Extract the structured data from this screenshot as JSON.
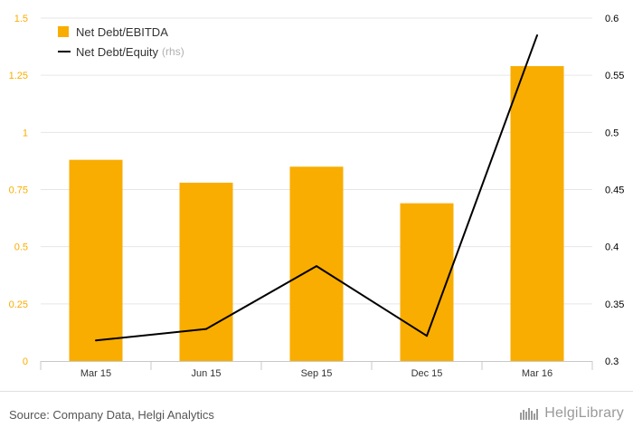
{
  "chart_data": {
    "type": "bar",
    "categories": [
      "Mar 15",
      "Jun 15",
      "Sep 15",
      "Dec 15",
      "Mar 16"
    ],
    "series": [
      {
        "name": "Net Debt/EBITDA",
        "type": "bar",
        "axis": "left",
        "color": "#f9ad00",
        "values": [
          0.88,
          0.78,
          0.85,
          0.69,
          1.29
        ]
      },
      {
        "name": "Net Debt/Equity",
        "type": "line",
        "axis": "right",
        "color": "#000000",
        "values": [
          0.318,
          0.328,
          0.383,
          0.322,
          0.585
        ]
      }
    ],
    "left_axis": {
      "min": 0,
      "max": 1.5,
      "ticks": [
        "0",
        "0.25",
        "0.5",
        "0.75",
        "1",
        "1.25",
        "1.5"
      ],
      "color": "#f9ad00"
    },
    "right_axis": {
      "min": 0.3,
      "max": 0.6,
      "ticks": [
        "0.3",
        "0.35",
        "0.4",
        "0.45",
        "0.5",
        "0.55",
        "0.6"
      ],
      "color": "#000000"
    },
    "legend": {
      "position": "top-left",
      "items": [
        {
          "label": "Net Debt/EBITDA",
          "suffix": ""
        },
        {
          "label": "Net Debt/Equity",
          "suffix": "(rhs)"
        }
      ]
    },
    "grid": true
  },
  "footer": {
    "source": "Source: Company Data, Helgi Analytics",
    "brand": "HelgiLibrary"
  }
}
